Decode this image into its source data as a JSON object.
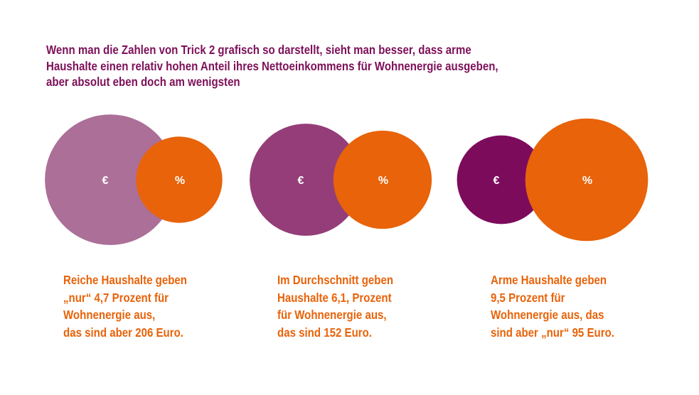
{
  "title_lines": [
    "Wenn man die Zahlen von Trick 2 grafisch so darstellt, sieht man besser, dass arme",
    "Haushalte einen relativ hohen Anteil ihres Nettoeinkommens für Wohnenergie ausgeben,",
    "aber absolut eben doch am wenigsten"
  ],
  "chart_data": {
    "type": "bubble",
    "title": "Wenn man die Zahlen von Trick 2 grafisch so darstellt, sieht man besser, dass arme Haushalte einen relativ hohen Anteil ihres Nettoeinkommens für Wohnenergie ausgeben, aber absolut eben doch am wenigsten",
    "categories": [
      "Reiche Haushalte",
      "Durchschnitt",
      "Arme Haushalte"
    ],
    "series": [
      {
        "name": "Euro",
        "symbol": "€",
        "values": [
          206,
          152,
          95
        ],
        "colors": [
          "#ab6f98",
          "#943d78",
          "#7d0b5c"
        ]
      },
      {
        "name": "Prozent",
        "symbol": "%",
        "values": [
          4.7,
          6.1,
          9.5
        ],
        "color": "#e8630a"
      }
    ],
    "captions": [
      [
        "Reiche Haushalte geben",
        "„nur“ 4,7 Prozent für",
        "Wohnenergie aus,",
        "das sind aber 206 Euro."
      ],
      [
        "Im Durchschnitt geben",
        "Haushalte 6,1, Prozent",
        "für Wohnenergie aus,",
        "das sind 152 Euro."
      ],
      [
        "Arme Haushalte geben",
        "9,5 Prozent für",
        "Wohnenergie aus, das",
        "sind aber „nur“ 95 Euro."
      ]
    ]
  }
}
